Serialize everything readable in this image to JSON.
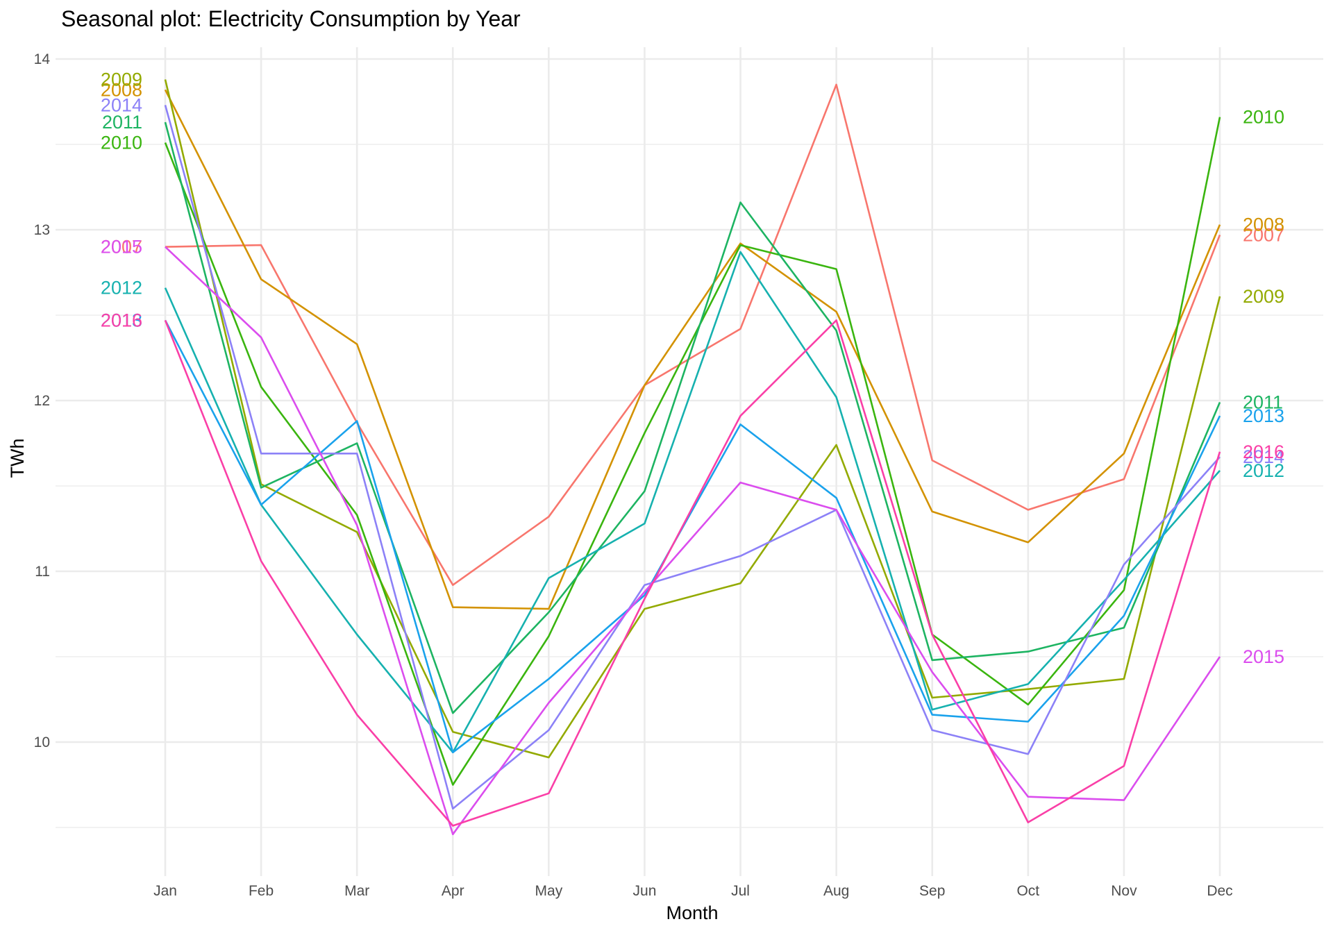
{
  "chart_data": {
    "type": "line",
    "title": "Seasonal plot: Electricity Consumption by Year",
    "xlabel": "Month",
    "ylabel": "TWh",
    "categories": [
      "Jan",
      "Feb",
      "Mar",
      "Apr",
      "May",
      "Jun",
      "Jul",
      "Aug",
      "Sep",
      "Oct",
      "Nov",
      "Dec"
    ],
    "yticks": [
      10,
      11,
      12,
      13,
      14
    ],
    "ytick_labels": [
      "10",
      "11",
      "12",
      "13",
      "14"
    ],
    "ylim": [
      9.5,
      14
    ],
    "grid": true,
    "legend": "none (series labelled at both ends of each line)",
    "series": [
      {
        "name": "2007",
        "color": "#F8766D",
        "values": [
          12.9,
          12.91,
          11.87,
          10.92,
          11.32,
          12.09,
          12.42,
          13.85,
          11.65,
          11.36,
          11.54,
          12.97
        ]
      },
      {
        "name": "2008",
        "color": "#D39200",
        "values": [
          13.82,
          12.71,
          12.33,
          10.79,
          10.78,
          12.09,
          12.92,
          12.52,
          11.35,
          11.17,
          11.69,
          13.03
        ]
      },
      {
        "name": "2009",
        "color": "#93AA00",
        "values": [
          13.88,
          11.51,
          11.23,
          10.06,
          9.91,
          10.78,
          10.93,
          11.74,
          10.26,
          10.31,
          10.37,
          12.61
        ]
      },
      {
        "name": "2010",
        "color": "#3AB50F",
        "values": [
          13.51,
          12.08,
          11.33,
          9.75,
          10.62,
          11.81,
          12.91,
          12.77,
          10.63,
          10.22,
          10.89,
          13.66
        ]
      },
      {
        "name": "2011",
        "color": "#1DB462",
        "values": [
          13.63,
          11.49,
          11.75,
          10.17,
          10.76,
          11.47,
          13.16,
          12.41,
          10.48,
          10.53,
          10.67,
          11.99
        ]
      },
      {
        "name": "2012",
        "color": "#16B1AF",
        "values": [
          12.66,
          11.39,
          10.63,
          9.94,
          10.96,
          11.28,
          12.87,
          12.02,
          10.19,
          10.34,
          10.95,
          11.59
        ]
      },
      {
        "name": "2013",
        "color": "#1AA2EC",
        "values": [
          12.47,
          11.39,
          11.88,
          9.94,
          10.37,
          10.86,
          11.86,
          11.43,
          10.16,
          10.12,
          10.74,
          11.91
        ]
      },
      {
        "name": "2014",
        "color": "#8C81F7",
        "values": [
          13.73,
          11.69,
          11.69,
          9.61,
          10.07,
          10.92,
          11.09,
          11.36,
          10.07,
          9.93,
          11.04,
          11.67
        ]
      },
      {
        "name": "2015",
        "color": "#DB4DEE",
        "values": [
          12.9,
          12.37,
          11.27,
          9.46,
          10.23,
          10.88,
          11.52,
          11.36,
          10.41,
          9.68,
          9.66,
          10.5
        ]
      },
      {
        "name": "2016",
        "color": "#FA3FA7",
        "values": [
          12.47,
          11.06,
          10.16,
          9.51,
          9.7,
          10.84,
          11.91,
          12.47,
          10.63,
          9.53,
          9.86,
          11.7
        ]
      }
    ]
  }
}
